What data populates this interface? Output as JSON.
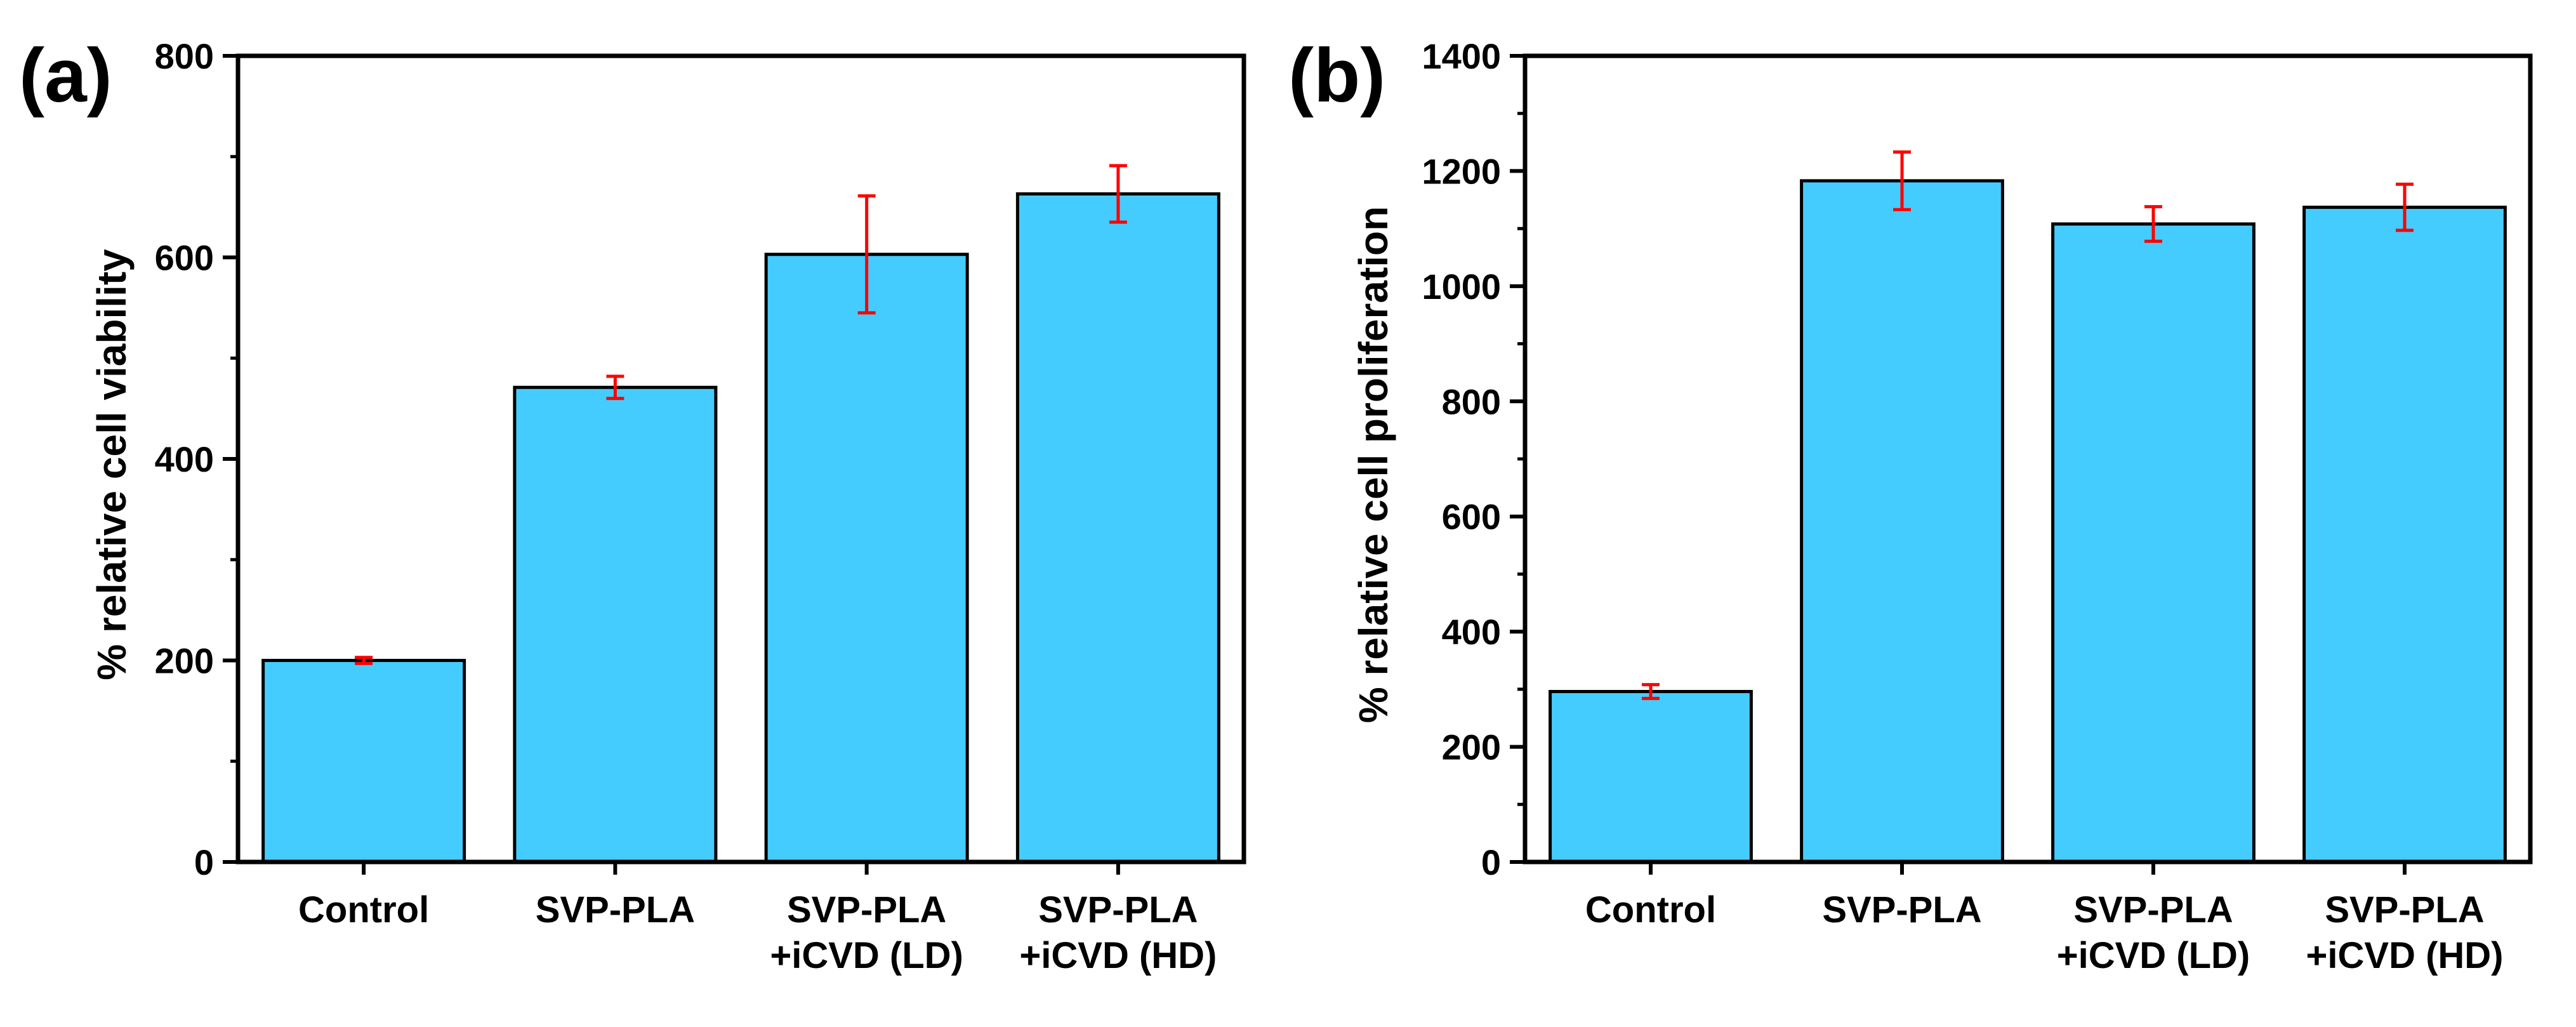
{
  "style": {
    "bar_color": "#45ccff",
    "bar_stroke": "#000000",
    "error_color": "#ff0000",
    "axis_color": "#000000"
  },
  "chart_data": [
    {
      "type": "bar",
      "panel_label": "(a)",
      "title": "",
      "xlabel": "",
      "ylabel": "% relative cell viability",
      "categories": [
        [
          "Control"
        ],
        [
          "SVP-PLA"
        ],
        [
          "SVP-PLA",
          "+iCVD (LD)"
        ],
        [
          "SVP-PLA",
          "+iCVD (HD)"
        ]
      ],
      "values": [
        200,
        471,
        603,
        663
      ],
      "errors": [
        3,
        11,
        58,
        28
      ],
      "ylim": [
        0,
        800
      ],
      "yticks": [
        0,
        200,
        400,
        600,
        800
      ],
      "ytick_labels": [
        "0",
        "200",
        "400",
        "600",
        "800"
      ],
      "minor_step": 100,
      "grid": false
    },
    {
      "type": "bar",
      "panel_label": "(b)",
      "title": "",
      "xlabel": "",
      "ylabel": "% relative cell proliferation",
      "categories": [
        [
          "Control"
        ],
        [
          "SVP-PLA"
        ],
        [
          "SVP-PLA",
          "+iCVD (LD)"
        ],
        [
          "SVP-PLA",
          "+iCVD (HD)"
        ]
      ],
      "values": [
        296,
        1183,
        1108,
        1137
      ],
      "errors": [
        12,
        50,
        30,
        40
      ],
      "ylim": [
        0,
        1400
      ],
      "yticks": [
        0,
        200,
        400,
        600,
        800,
        1000,
        1200,
        1400
      ],
      "ytick_labels": [
        "0",
        "200",
        "400",
        "600",
        "800",
        "1000",
        "1200",
        "1400"
      ],
      "minor_step": 100,
      "grid": false
    }
  ]
}
